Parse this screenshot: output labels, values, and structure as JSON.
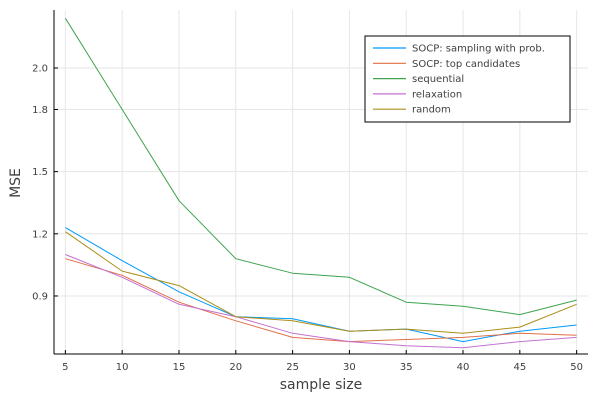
{
  "chart_data": {
    "type": "line",
    "xlabel": "sample size",
    "ylabel": "MSE",
    "xlim": [
      4,
      51
    ],
    "ylim": [
      0.62,
      2.28
    ],
    "x": [
      5,
      10,
      15,
      20,
      25,
      30,
      35,
      40,
      45,
      50
    ],
    "x_ticks": [
      5,
      10,
      15,
      20,
      25,
      30,
      35,
      40,
      45,
      50
    ],
    "y_ticks": [
      0.9,
      1.2,
      1.5,
      1.8,
      2.0
    ],
    "grid": true,
    "legend_position": "top-right",
    "series": [
      {
        "name": "SOCP: sampling with prob.",
        "color": "#009AFA",
        "values": [
          1.23,
          1.07,
          0.92,
          0.8,
          0.79,
          0.73,
          0.74,
          0.68,
          0.73,
          0.76
        ]
      },
      {
        "name": "SOCP: top candidates",
        "color": "#E36F47",
        "values": [
          1.08,
          1.0,
          0.87,
          0.78,
          0.7,
          0.68,
          0.69,
          0.7,
          0.72,
          0.71
        ]
      },
      {
        "name": "sequential",
        "color": "#3EA44E",
        "values": [
          2.24,
          1.8,
          1.36,
          1.08,
          1.01,
          0.99,
          0.87,
          0.85,
          0.81,
          0.88
        ]
      },
      {
        "name": "relaxation",
        "color": "#C371D2",
        "values": [
          1.1,
          0.99,
          0.86,
          0.8,
          0.72,
          0.68,
          0.66,
          0.65,
          0.68,
          0.7
        ]
      },
      {
        "name": "random",
        "color": "#AC8D18",
        "values": [
          1.21,
          1.02,
          0.95,
          0.8,
          0.78,
          0.73,
          0.74,
          0.72,
          0.75,
          0.86
        ]
      }
    ]
  }
}
